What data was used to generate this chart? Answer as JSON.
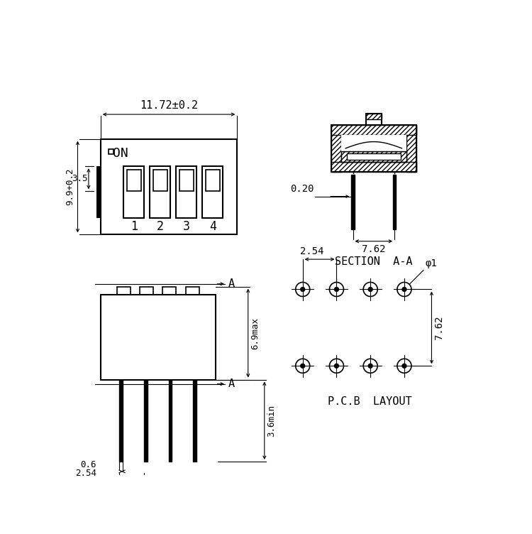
{
  "bg_color": "#ffffff",
  "line_color": "#000000",
  "views": {
    "top_left": {
      "dim_width": "11.72±0.2",
      "dim_height": "9.9+0.2",
      "dim_35": "3.5",
      "switch_labels": [
        "1",
        "2",
        "3",
        "4"
      ],
      "on_label": "ON"
    },
    "top_right": {
      "caption": "SECTION  A-A",
      "dim_020": "0.20",
      "dim_762": "7.62"
    },
    "bottom_left": {
      "dim_69": "6.9max",
      "dim_36": "3.6min",
      "dim_06": "0.6",
      "dim_254": "2.54",
      "label_A": "A"
    },
    "bottom_right": {
      "caption": "P.C.B  LAYOUT",
      "dim_254": "2.54",
      "dim_762": "7.62",
      "dim_phi": "φ1"
    }
  }
}
